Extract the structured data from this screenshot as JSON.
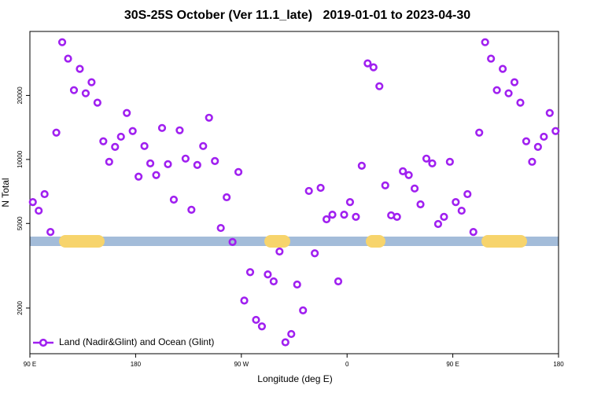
{
  "chart_data": {
    "type": "scatter",
    "title": "30S-25S October (Ver 11.1_late)   2019-01-01 to 2023-04-30",
    "xlabel": "Longitude (deg E)",
    "ylabel": "N Total",
    "xlim": [
      90,
      540
    ],
    "ylim": [
      1220,
      40000
    ],
    "log_y": true,
    "legend": "lower left",
    "xticks": [
      {
        "value": 90,
        "label": "90 E"
      },
      180,
      {
        "value": 270,
        "label": "90 W"
      },
      {
        "value": 360,
        "label": "0"
      },
      {
        "value": 450,
        "label": "90 E"
      },
      {
        "value": 540,
        "label": "180"
      }
    ],
    "yticks": [
      2000,
      5000,
      10000,
      20000
    ],
    "x": [
      92.5,
      97.5,
      102.5,
      107.5,
      112.5,
      117.5,
      122.5,
      127.5,
      132.5,
      137.5,
      142.5,
      147.5,
      152.5,
      157.5,
      162.5,
      167.5,
      172.5,
      177.5,
      182.5,
      187.5,
      192.5,
      197.5,
      202.5,
      207.5,
      212.5,
      217.5,
      222.5,
      227.5,
      232.5,
      237.5,
      242.5,
      247.5,
      252.5,
      257.5,
      262.5,
      267.5,
      272.5,
      277.5,
      282.5,
      287.5,
      292.5,
      297.5,
      302.5,
      307.5,
      312.5,
      317.5,
      322.5,
      327.5,
      332.5,
      337.5,
      342.5,
      347.5,
      352.5,
      357.5,
      362.5,
      367.5,
      372.5,
      377.5,
      382.5,
      387.5,
      392.5,
      397.5,
      402.5,
      407.5,
      412.5,
      417.5,
      422.5,
      427.5,
      432.5,
      437.5,
      442.5,
      447.5,
      452.5,
      457.5,
      462.5,
      467.5,
      472.5,
      477.5,
      482.5,
      487.5,
      492.5,
      497.5,
      502.5,
      507.5,
      512.5,
      517.5,
      522.5,
      527.5,
      532.5,
      537.5
    ],
    "series": [
      {
        "name": "Land (Nadir&Glint) and Ocean (Glint)",
        "color": "#a020f0",
        "values": [
          6300,
          5740,
          6870,
          4560,
          13370,
          35600,
          29800,
          21180,
          26670,
          20470,
          23070,
          18490,
          12170,
          9750,
          11460,
          12790,
          16540,
          13600,
          8300,
          11560,
          9580,
          8440,
          14060,
          9500,
          6470,
          13710,
          10090,
          5800,
          9420,
          11560,
          15710,
          9830,
          4760,
          6640,
          4090,
          8730,
          2170,
          2950,
          1760,
          1640,
          2880,
          2670,
          3690,
          1380,
          1510,
          2580,
          1950,
          7110,
          3620,
          7350,
          5230,
          5500,
          2670,
          5500,
          6300,
          5370,
          9340,
          28310,
          27120,
          22100,
          7550,
          5460,
          5370,
          8800,
          8440,
          7300,
          6150,
          10090,
          9580,
          4970,
          5370,
          9750,
          6300,
          5740,
          6870,
          4560,
          13370,
          35600,
          29800,
          21180,
          26670,
          20470,
          23070,
          18490,
          12170,
          9750,
          11460,
          12790,
          16540,
          13600
        ]
      }
    ]
  }
}
